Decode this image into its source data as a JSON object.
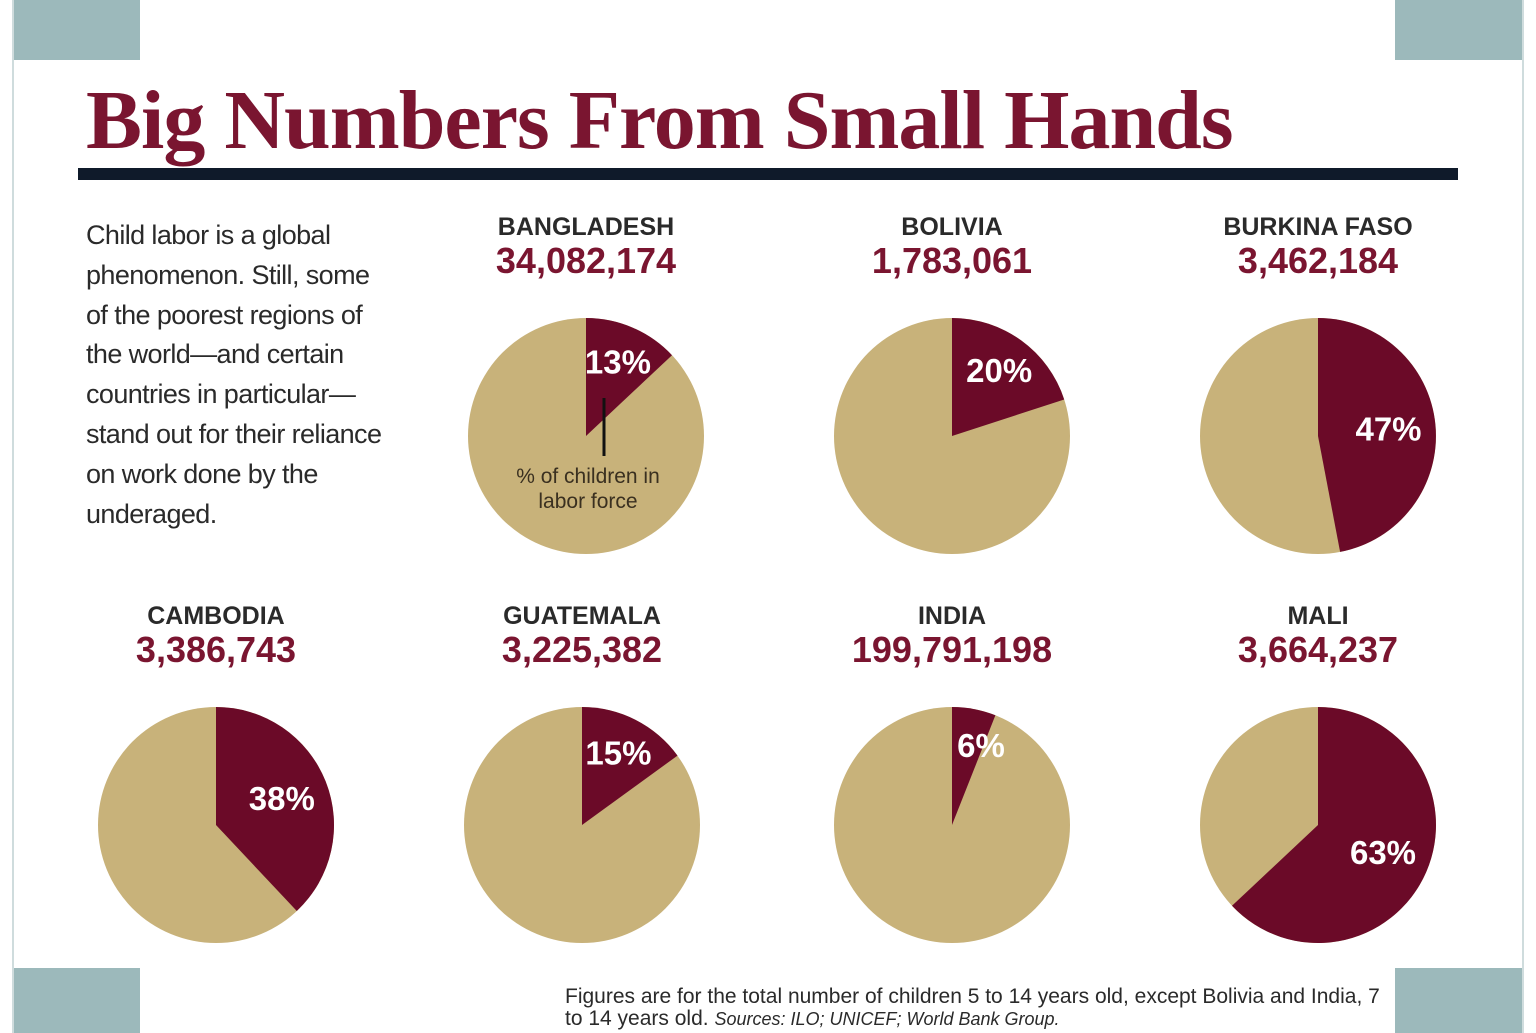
{
  "title": "Big Numbers From Small Hands",
  "intro": "Child labor is a global phenomenon. Still, some of the poorest regions of the world—and certain countries in particular—stand out for their reliance on work done by the underaged.",
  "annotation": "% of children in labor force",
  "footnote": "Figures are for the total number of children 5 to 14 years old, except Bolivia and India, 7 to 14 years old.",
  "sources": "Sources: ILO; UNICEF; World Bank Group.",
  "colors": {
    "labor": "#6b0a28",
    "rest": "#c8b27a",
    "title": "#7a1530"
  },
  "chart_data": {
    "type": "pie",
    "title": "Big Numbers From Small Hands",
    "series_label": "% of children in labor force",
    "pies": [
      {
        "country": "BANGLADESH",
        "count": "34,082,174",
        "percent": 13,
        "label": "13%"
      },
      {
        "country": "BOLIVIA",
        "count": "1,783,061",
        "percent": 20,
        "label": "20%"
      },
      {
        "country": "BURKINA FASO",
        "count": "3,462,184",
        "percent": 47,
        "label": "47%"
      },
      {
        "country": "CAMBODIA",
        "count": "3,386,743",
        "percent": 38,
        "label": "38%"
      },
      {
        "country": "GUATEMALA",
        "count": "3,225,382",
        "percent": 15,
        "label": "15%"
      },
      {
        "country": "INDIA",
        "count": "199,791,198",
        "percent": 6,
        "label": "6%"
      },
      {
        "country": "MALI",
        "count": "3,664,237",
        "percent": 63,
        "label": "63%"
      }
    ]
  }
}
